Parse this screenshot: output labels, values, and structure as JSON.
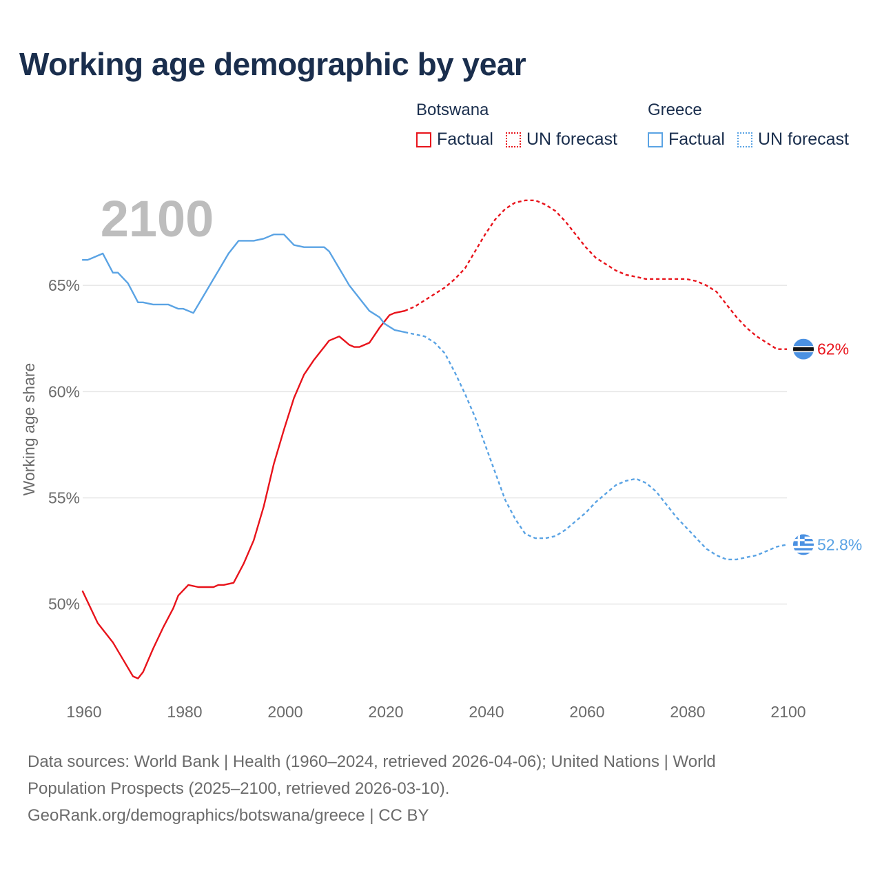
{
  "title": "Working age demographic by year",
  "year_display": "2100",
  "legend": {
    "groups": [
      {
        "country": "Botswana",
        "factual_label": "Factual",
        "forecast_label": "UN forecast",
        "color": "#e8131b"
      },
      {
        "country": "Greece",
        "factual_label": "Factual",
        "forecast_label": "UN forecast",
        "color": "#5aa3e4"
      }
    ]
  },
  "footer": {
    "line1": "Data sources: World Bank | Health (1960–2024, retrieved 2026-04-06); United Nations | World",
    "line2": "Population Prospects (2025–2100, retrieved 2026-03-10).",
    "line3": "GeoRank.org/demographics/botswana/greece | CC BY"
  },
  "chart_data": {
    "type": "line",
    "title": "Working age demographic by year",
    "xlabel": "",
    "ylabel": "Working age share",
    "xlim": [
      1960,
      2100
    ],
    "ylim": [
      46,
      70
    ],
    "x_ticks": [
      1960,
      1980,
      2000,
      2020,
      2040,
      2060,
      2080,
      2100
    ],
    "x_tick_labels": [
      "1960",
      "1980",
      "2000",
      "2020",
      "2040",
      "2060",
      "2080",
      "2100"
    ],
    "y_ticks": [
      50,
      55,
      60,
      65
    ],
    "y_tick_labels": [
      "50%",
      "55%",
      "60%",
      "65%"
    ],
    "grid": true,
    "series": [
      {
        "name": "Botswana Factual",
        "color": "#e8131b",
        "style": "solid",
        "x": [
          1960,
          1963,
          1966,
          1968,
          1970,
          1971,
          1972,
          1974,
          1976,
          1978,
          1979,
          1981,
          1983,
          1985,
          1986,
          1987,
          1988,
          1990,
          1992,
          1994,
          1996,
          1998,
          2000,
          2002,
          2004,
          2006,
          2008,
          2009,
          2011,
          2012,
          2013,
          2014,
          2015,
          2017,
          2019,
          2021,
          2022,
          2024
        ],
        "y": [
          50.6,
          49.1,
          48.2,
          47.4,
          46.6,
          46.5,
          46.8,
          47.9,
          48.9,
          49.8,
          50.4,
          50.9,
          50.8,
          50.8,
          50.8,
          50.9,
          50.9,
          51.0,
          51.9,
          53.0,
          54.6,
          56.6,
          58.2,
          59.7,
          60.8,
          61.5,
          62.1,
          62.4,
          62.6,
          62.4,
          62.2,
          62.1,
          62.1,
          62.3,
          63.0,
          63.6,
          63.7,
          63.8
        ]
      },
      {
        "name": "Botswana UN forecast",
        "color": "#e8131b",
        "style": "dashed",
        "x": [
          2024,
          2026,
          2028,
          2030,
          2032,
          2034,
          2036,
          2038,
          2040,
          2042,
          2044,
          2046,
          2048,
          2050,
          2052,
          2054,
          2056,
          2058,
          2060,
          2062,
          2064,
          2066,
          2068,
          2070,
          2072,
          2074,
          2076,
          2078,
          2080,
          2082,
          2084,
          2086,
          2088,
          2090,
          2092,
          2094,
          2096,
          2098,
          2100
        ],
        "y": [
          63.8,
          64.0,
          64.3,
          64.6,
          64.9,
          65.3,
          65.8,
          66.6,
          67.4,
          68.1,
          68.6,
          68.9,
          69.0,
          69.0,
          68.8,
          68.5,
          68.0,
          67.4,
          66.8,
          66.3,
          66.0,
          65.7,
          65.5,
          65.4,
          65.3,
          65.3,
          65.3,
          65.3,
          65.3,
          65.2,
          65.0,
          64.7,
          64.1,
          63.5,
          63.0,
          62.6,
          62.3,
          62.0,
          62.0
        ]
      },
      {
        "name": "Greece Factual",
        "color": "#5aa3e4",
        "style": "solid",
        "x": [
          1960,
          1961,
          1962,
          1964,
          1966,
          1967,
          1969,
          1971,
          1972,
          1974,
          1977,
          1979,
          1980,
          1982,
          1984,
          1986,
          1987,
          1989,
          1991,
          1994,
          1996,
          1998,
          2000,
          2002,
          2004,
          2006,
          2008,
          2009,
          2011,
          2012,
          2013,
          2015,
          2017,
          2019,
          2020,
          2022,
          2024
        ],
        "y": [
          66.2,
          66.2,
          66.3,
          66.5,
          65.6,
          65.6,
          65.1,
          64.2,
          64.2,
          64.1,
          64.1,
          63.9,
          63.9,
          63.7,
          64.5,
          65.3,
          65.7,
          66.5,
          67.1,
          67.1,
          67.2,
          67.4,
          67.4,
          66.9,
          66.8,
          66.8,
          66.8,
          66.6,
          65.8,
          65.4,
          65.0,
          64.4,
          63.8,
          63.5,
          63.2,
          62.9,
          62.8
        ]
      },
      {
        "name": "Greece UN forecast",
        "color": "#5aa3e4",
        "style": "dashed",
        "x": [
          2024,
          2026,
          2028,
          2030,
          2032,
          2034,
          2036,
          2038,
          2040,
          2042,
          2044,
          2046,
          2048,
          2050,
          2052,
          2054,
          2056,
          2058,
          2060,
          2062,
          2064,
          2066,
          2068,
          2070,
          2072,
          2074,
          2076,
          2078,
          2080,
          2082,
          2084,
          2086,
          2088,
          2090,
          2092,
          2094,
          2096,
          2098,
          2100
        ],
        "y": [
          62.8,
          62.7,
          62.6,
          62.3,
          61.8,
          60.9,
          59.9,
          58.8,
          57.5,
          56.2,
          54.9,
          54.0,
          53.3,
          53.1,
          53.1,
          53.2,
          53.5,
          53.9,
          54.3,
          54.8,
          55.2,
          55.6,
          55.8,
          55.9,
          55.7,
          55.3,
          54.7,
          54.1,
          53.6,
          53.1,
          52.6,
          52.3,
          52.1,
          52.1,
          52.2,
          52.3,
          52.5,
          52.7,
          52.8
        ]
      }
    ],
    "end_labels": [
      {
        "series": "Botswana",
        "label": "62%",
        "value": 62.0,
        "color": "#e8131b",
        "flag": "botswana-flag"
      },
      {
        "series": "Greece",
        "label": "52.8%",
        "value": 52.8,
        "color": "#5aa3e4",
        "flag": "greece-flag"
      }
    ]
  }
}
